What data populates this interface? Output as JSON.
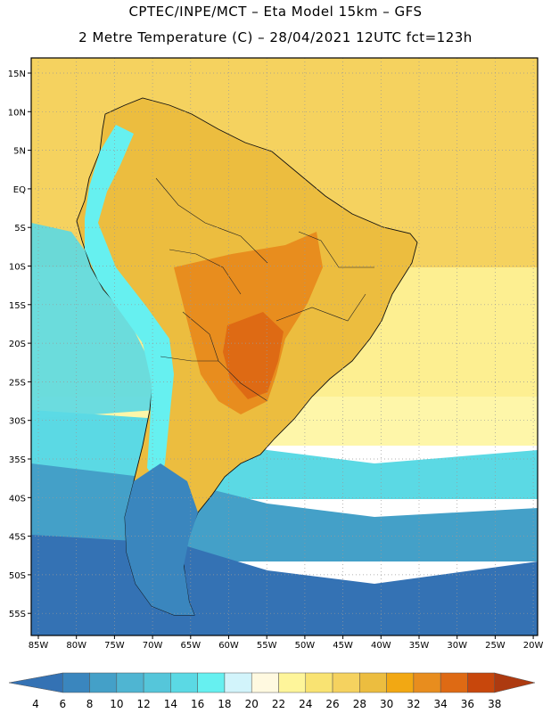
{
  "title_line1": "CPTEC/INPE/MCT –  Eta Model 15km – GFS",
  "title_line2": "2 Metre Temperature (C) – 28/04/2021 12UTC fct=123h",
  "variable": "2 Metre Temperature",
  "units": "C",
  "lat_ticks": [
    "15N",
    "10N",
    "5N",
    "EQ",
    "5S",
    "10S",
    "15S",
    "20S",
    "25S",
    "30S",
    "35S",
    "40S",
    "45S",
    "50S",
    "55S"
  ],
  "lon_ticks": [
    "85W",
    "80W",
    "75W",
    "70W",
    "65W",
    "60W",
    "55W",
    "50W",
    "45W",
    "40W",
    "35W",
    "30W",
    "25W",
    "20W"
  ],
  "colorbar": {
    "labels": [
      "4",
      "6",
      "8",
      "10",
      "12",
      "14",
      "16",
      "18",
      "20",
      "22",
      "24",
      "26",
      "28",
      "30",
      "32",
      "34",
      "36",
      "38"
    ],
    "colors": [
      "#3472b4",
      "#3a86be",
      "#44a0c8",
      "#4fb5d2",
      "#55c6da",
      "#5bd9e4",
      "#66f0f0",
      "#d2f4fb",
      "#fff9e0",
      "#fef59a",
      "#f9e372",
      "#f5d25f",
      "#ecbd3f",
      "#f2a813",
      "#e88d1e",
      "#de6a14",
      "#c8470c",
      "#ad3a10"
    ]
  },
  "field_colors": {
    "ocean_tropical": "#f5d25f",
    "ocean_subtropical": "#fef59a",
    "ocean_cool": "#5bd9e4",
    "ocean_cold": "#44a0c8",
    "ocean_polar": "#3472b4",
    "land_warm": "#ecbd3f",
    "land_hot": "#e88d1e",
    "land_hottest": "#de6a14",
    "andes": "#66f0f0",
    "patagonia": "#3a86be"
  }
}
